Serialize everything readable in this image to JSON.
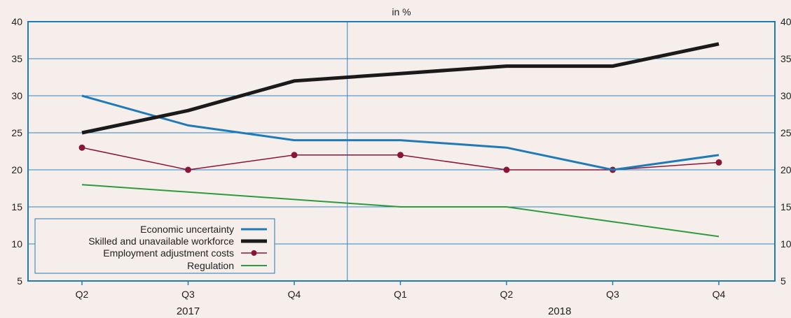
{
  "chart_data": {
    "type": "line",
    "title": "in %",
    "categories": [
      "Q2",
      "Q3",
      "Q4",
      "Q1",
      "Q2",
      "Q3",
      "Q4"
    ],
    "year_labels": [
      "2017",
      "2018"
    ],
    "ylim": [
      5,
      40
    ],
    "yticks": [
      5,
      10,
      15,
      20,
      25,
      30,
      35,
      40
    ],
    "grid": true,
    "legend_position": "bottom-left",
    "colors": {
      "background": "#f5eeeb",
      "axis": "#1f7ab8",
      "grid": "#2a86c4"
    },
    "series": [
      {
        "name": "Economic uncertainty",
        "color": "#1f7ab8",
        "marker": false,
        "values": [
          30,
          26,
          24,
          24,
          23,
          20,
          22
        ]
      },
      {
        "name": "Skilled and unavailable workforce",
        "color": "#1a1a1a",
        "marker": false,
        "values": [
          25,
          28,
          32,
          33,
          34,
          34,
          37
        ]
      },
      {
        "name": "Employment adjustment costs",
        "color": "#8b1538",
        "marker": true,
        "values": [
          23,
          20,
          22,
          22,
          20,
          20,
          21
        ]
      },
      {
        "name": "Regulation",
        "color": "#2e9a3e",
        "marker": false,
        "values": [
          18,
          17,
          16,
          15,
          15,
          13,
          11
        ]
      }
    ]
  }
}
